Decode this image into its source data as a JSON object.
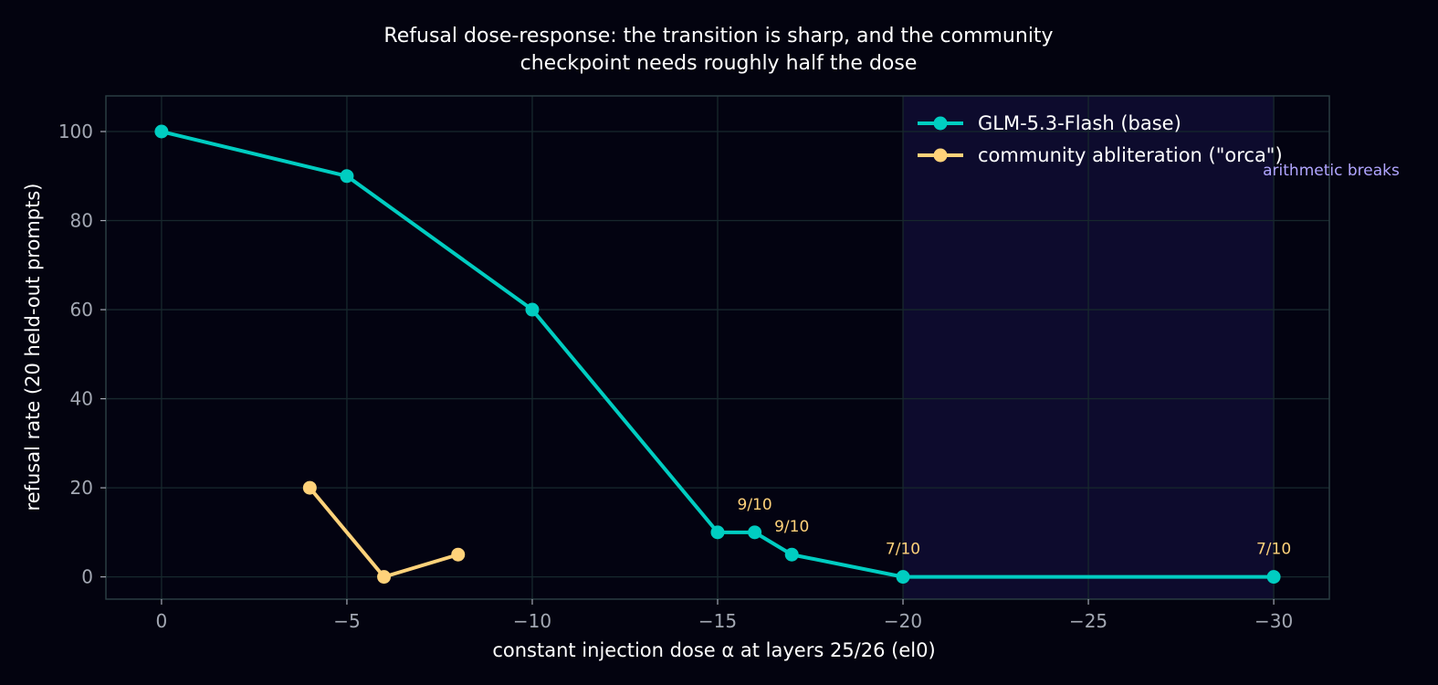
{
  "chart_data": {
    "type": "line",
    "title_lines": [
      "Refusal dose-response: the transition is sharp, and the community",
      "checkpoint needs roughly half the dose"
    ],
    "xlabel": "constant injection dose α at layers 25/26 (el0)",
    "ylabel": "refusal rate (20 held-out prompts)",
    "xlim": [
      1.5,
      -31.5
    ],
    "ylim": [
      -5,
      108
    ],
    "x_ticks": [
      0,
      -5,
      -10,
      -15,
      -20,
      -25,
      -30
    ],
    "x_tick_labels": [
      "0",
      "−5",
      "−10",
      "−15",
      "−20",
      "−25",
      "−30"
    ],
    "y_ticks": [
      0,
      20,
      40,
      60,
      80,
      100
    ],
    "y_tick_labels": [
      "0",
      "20",
      "40",
      "60",
      "80",
      "100"
    ],
    "grid": true,
    "legend_position": "top-right",
    "series": [
      {
        "name": "GLM-5.3-Flash (base)",
        "color": "#00cdc1",
        "x": [
          0,
          -5,
          -10,
          -15,
          -16,
          -17,
          -20,
          -30
        ],
        "y": [
          100,
          90,
          60,
          10,
          10,
          5,
          0,
          0
        ]
      },
      {
        "name": "community abliteration (\"orca\")",
        "color": "#ffd27a",
        "x": [
          -4,
          -6,
          -8
        ],
        "y": [
          20,
          0,
          5
        ]
      }
    ],
    "shaded_region": {
      "x_from": -20,
      "x_to": -30,
      "label": "arithmetic breaks",
      "color": "#0d0b2d",
      "label_color": "#b1a6ff"
    },
    "annotations": [
      {
        "x": -16,
        "y": 10,
        "text": "9/10",
        "color": "#ffd27a"
      },
      {
        "x": -17,
        "y": 5,
        "text": "9/10",
        "color": "#ffd27a"
      },
      {
        "x": -20,
        "y": 0,
        "text": "7/10",
        "color": "#ffd27a"
      },
      {
        "x": -30,
        "y": 0,
        "text": "7/10",
        "color": "#ffd27a"
      }
    ]
  }
}
